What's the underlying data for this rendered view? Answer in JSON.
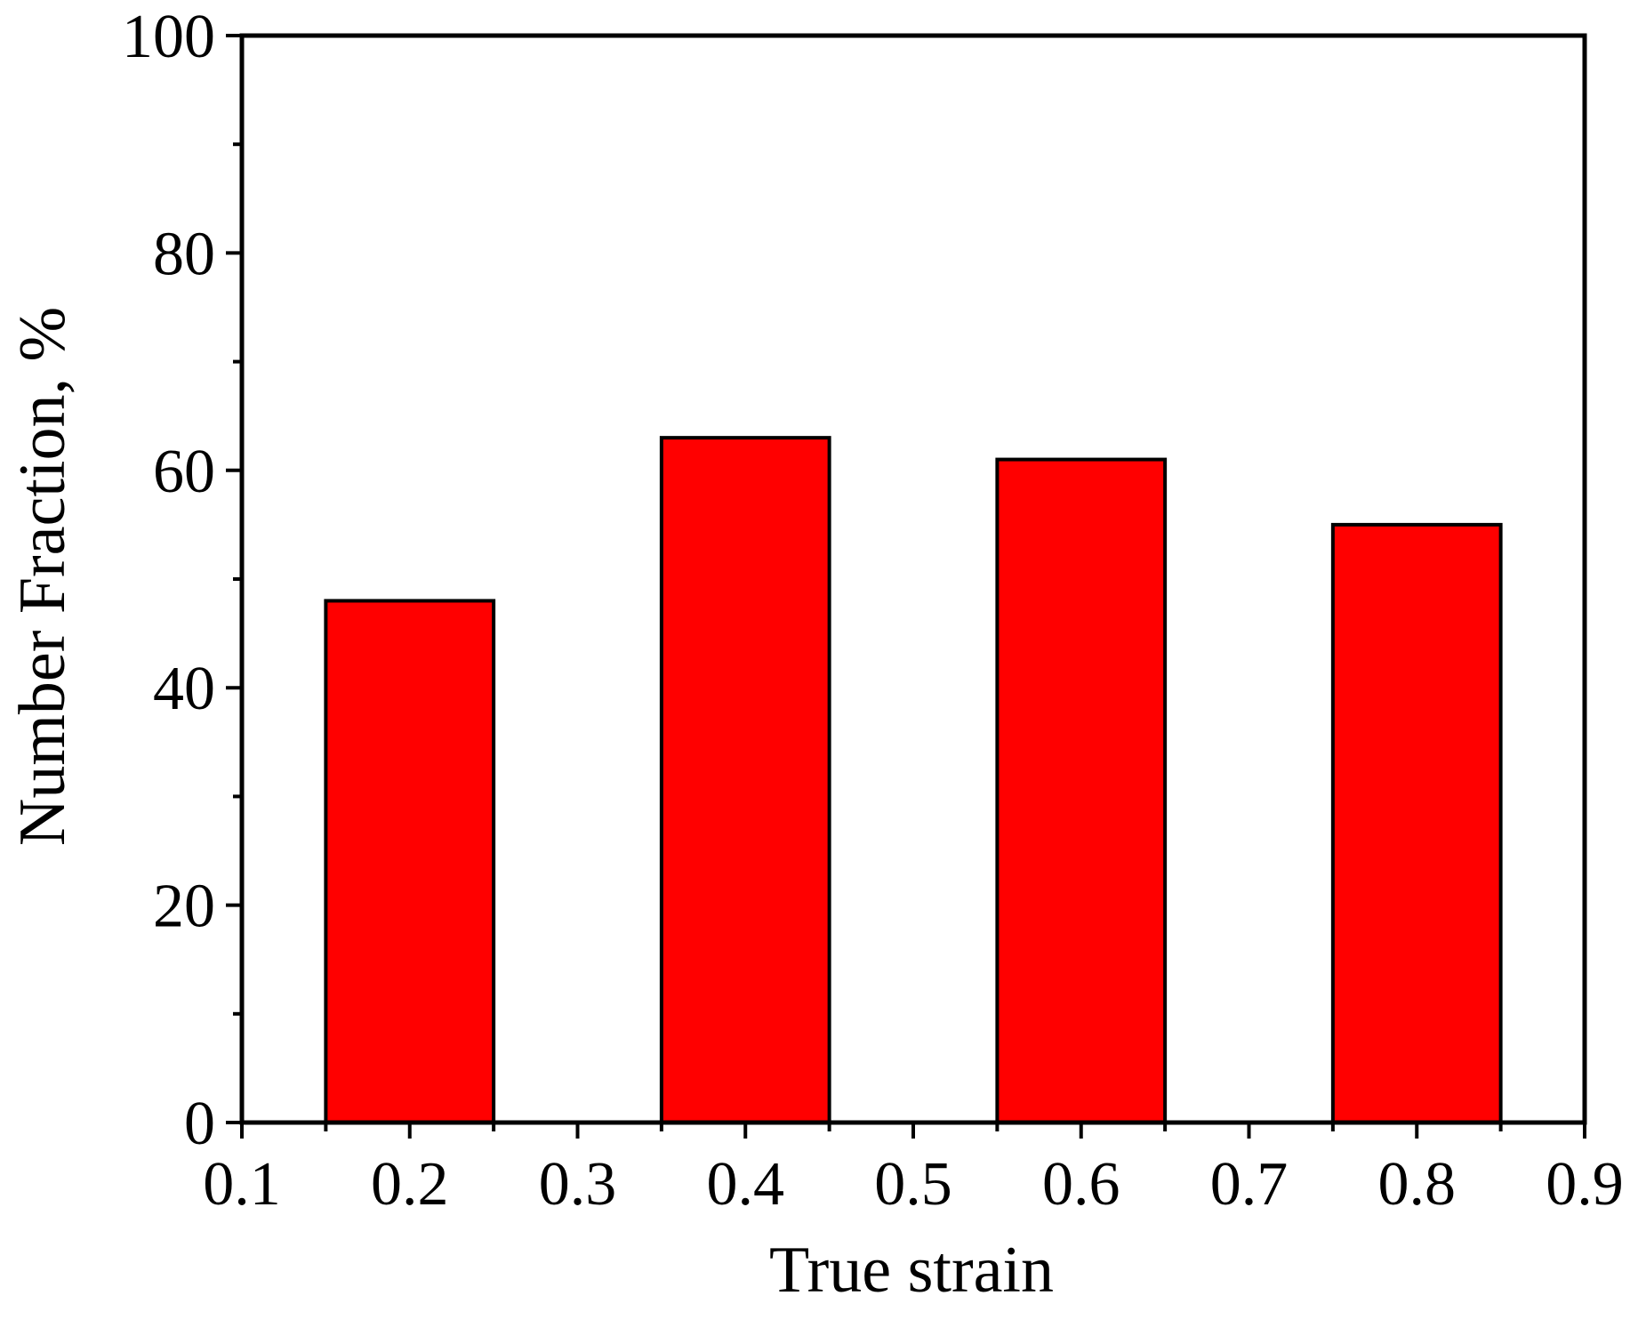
{
  "chart_data": {
    "type": "bar",
    "title": "",
    "xlabel": "True strain",
    "ylabel": "Number Fraction, %",
    "x": [
      0.2,
      0.4,
      0.6,
      0.8
    ],
    "values": [
      48,
      63,
      61,
      55
    ],
    "bar_width": 0.1,
    "xlim": [
      0.1,
      0.9
    ],
    "ylim": [
      0,
      100
    ],
    "x_ticks": [
      0.1,
      0.2,
      0.3,
      0.4,
      0.5,
      0.6,
      0.7,
      0.8,
      0.9
    ],
    "x_tick_labels": [
      "0.1",
      "0.2",
      "0.3",
      "0.4",
      "0.5",
      "0.6",
      "0.7",
      "0.8",
      "0.9"
    ],
    "y_ticks": [
      0,
      20,
      40,
      60,
      80,
      100
    ],
    "y_tick_labels": [
      "0",
      "20",
      "40",
      "60",
      "80",
      "100"
    ],
    "y_minor_ticks": [
      10,
      30,
      50,
      70,
      90
    ],
    "grid": false,
    "legend": "none",
    "bar_color": "#ff0000",
    "edge_color": "#000000"
  }
}
